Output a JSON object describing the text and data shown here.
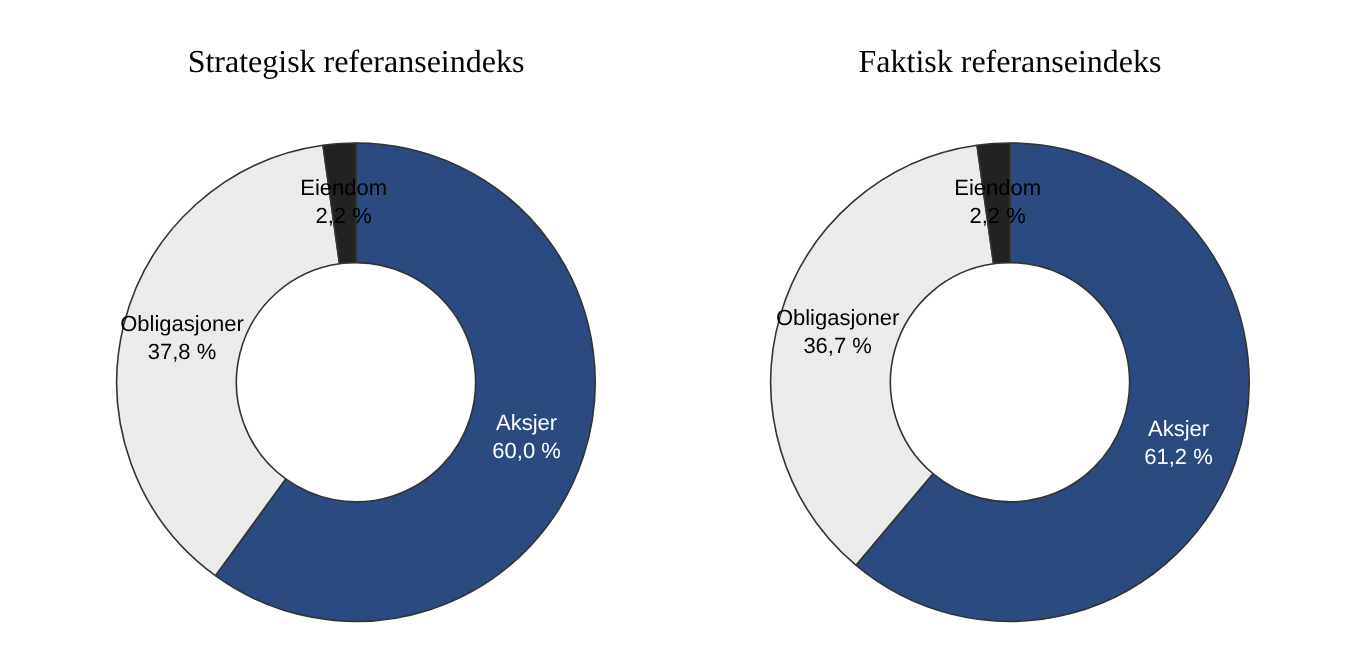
{
  "chart_data": [
    {
      "type": "donut",
      "title": "Strategisk referanseindeks",
      "categories": [
        "Aksjer",
        "Obligasjoner",
        "Eiendom"
      ],
      "values": [
        60.0,
        37.8,
        2.2
      ],
      "colors": [
        "#2b4a80",
        "#ebebeb",
        "#222222"
      ],
      "value_labels": [
        "60,0 %",
        "37,8 %",
        "2,2 %"
      ],
      "legend": false
    },
    {
      "type": "donut",
      "title": "Faktisk referanseindeks",
      "categories": [
        "Aksjer",
        "Obligasjoner",
        "Eiendom"
      ],
      "values": [
        61.2,
        36.7,
        2.2
      ],
      "colors": [
        "#2b4a80",
        "#ebebeb",
        "#222222"
      ],
      "value_labels": [
        "61,2 %",
        "36,7 %",
        "2,2 %"
      ],
      "legend": false
    }
  ]
}
